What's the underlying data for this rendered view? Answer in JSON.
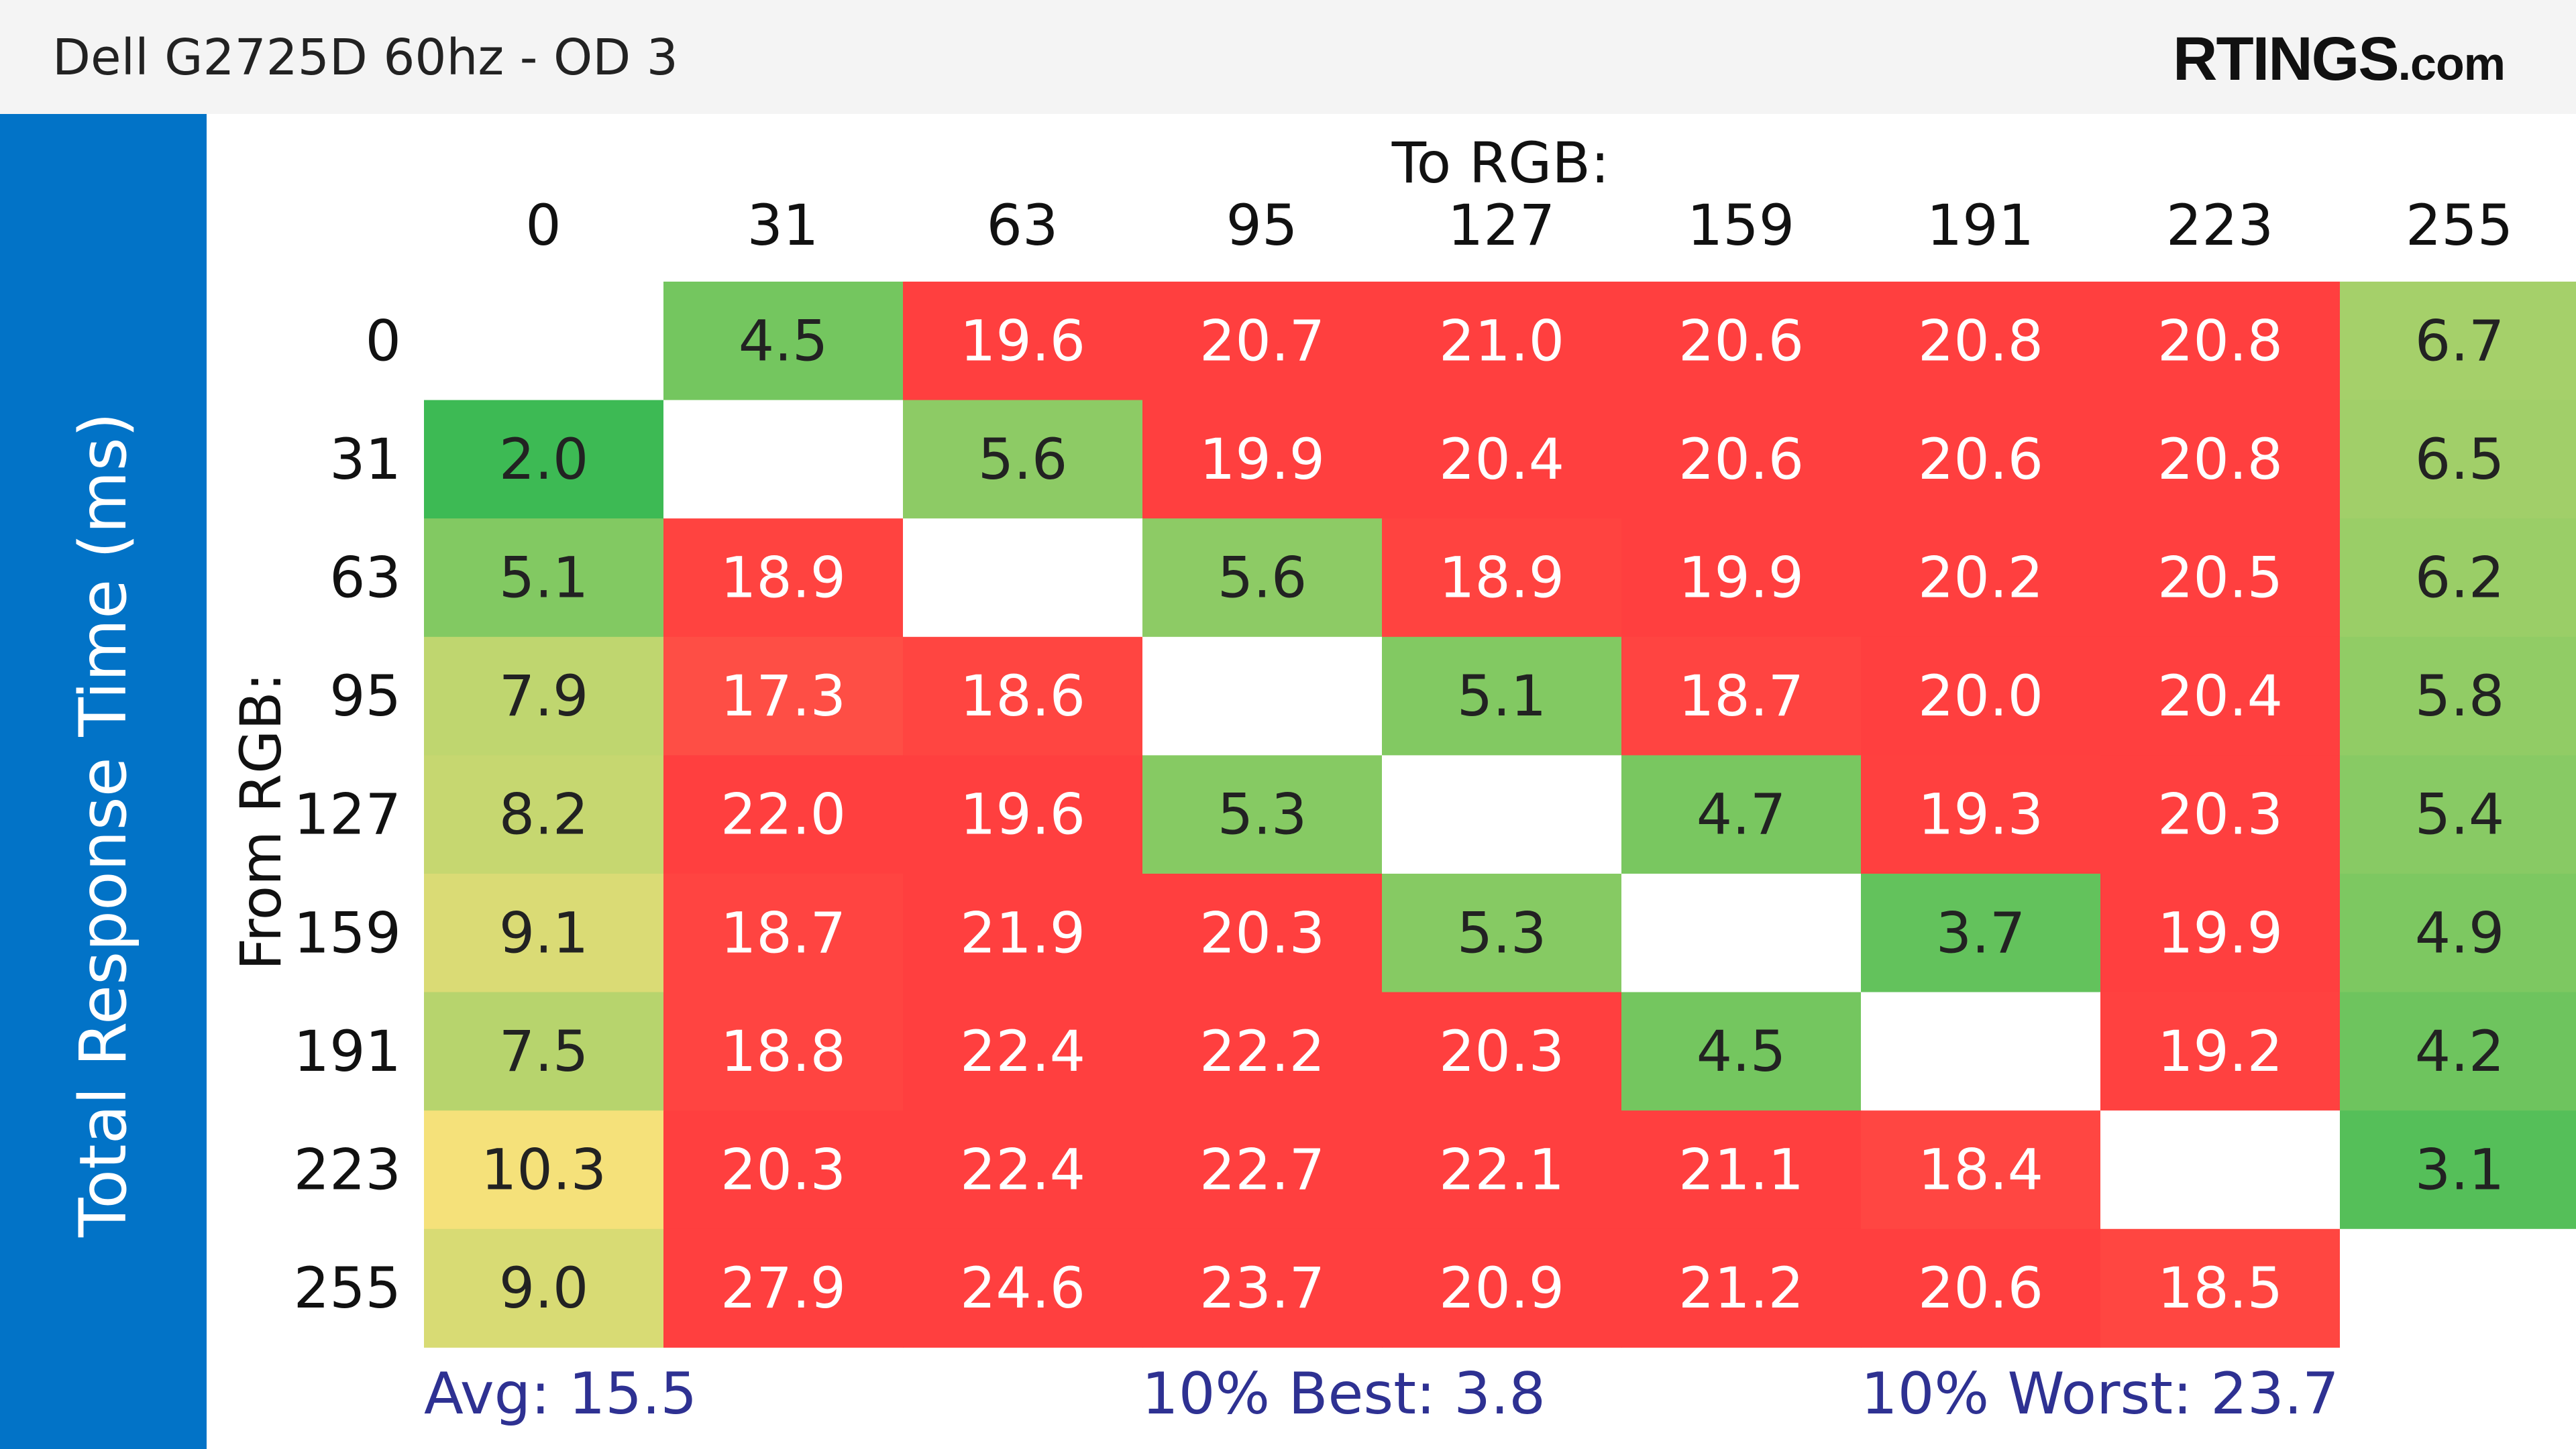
{
  "header": {
    "title": "Dell G2725D 60hz - OD 3",
    "logo_main": "RTINGS",
    "logo_suffix": ".com"
  },
  "side_label": "Total Response Time (ms)",
  "colors": {
    "best": "#3dba54",
    "mid": "#f9e27b",
    "worst": "#ff3f3f",
    "side_bar": "#0273c7",
    "stats": "#2e3192"
  },
  "chart_data": {
    "type": "heatmap",
    "title": "Dell G2725D 60hz - OD 3",
    "value_label": "Total Response Time (ms)",
    "x_title": "To RGB:",
    "y_title": "From RGB:",
    "x": [
      "0",
      "31",
      "63",
      "95",
      "127",
      "159",
      "191",
      "223",
      "255"
    ],
    "y": [
      "0",
      "31",
      "63",
      "95",
      "127",
      "159",
      "191",
      "223",
      "255"
    ],
    "values": [
      [
        null,
        4.5,
        19.6,
        20.7,
        21.0,
        20.6,
        20.8,
        20.8,
        6.7
      ],
      [
        2.0,
        null,
        5.6,
        19.9,
        20.4,
        20.6,
        20.6,
        20.8,
        6.5
      ],
      [
        5.1,
        18.9,
        null,
        5.6,
        18.9,
        19.9,
        20.2,
        20.5,
        6.2
      ],
      [
        7.9,
        17.3,
        18.6,
        null,
        5.1,
        18.7,
        20.0,
        20.4,
        5.8
      ],
      [
        8.2,
        22.0,
        19.6,
        5.3,
        null,
        4.7,
        19.3,
        20.3,
        5.4
      ],
      [
        9.1,
        18.7,
        21.9,
        20.3,
        5.3,
        null,
        3.7,
        19.9,
        4.9
      ],
      [
        7.5,
        18.8,
        22.4,
        22.2,
        20.3,
        4.5,
        null,
        19.2,
        4.2
      ],
      [
        10.3,
        20.3,
        22.4,
        22.7,
        22.1,
        21.1,
        18.4,
        null,
        3.1
      ],
      [
        9.0,
        27.9,
        24.6,
        23.7,
        20.9,
        21.2,
        20.6,
        18.5,
        null
      ]
    ],
    "stats": {
      "avg": "Avg: 15.5",
      "best": "10% Best: 3.8",
      "worst": "10% Worst: 23.7"
    }
  }
}
